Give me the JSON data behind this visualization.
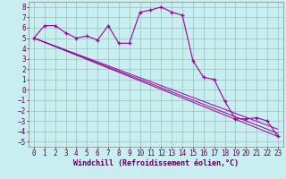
{
  "title": "",
  "xlabel": "Windchill (Refroidissement éolien,°C)",
  "bg_color": "#c8eef0",
  "line_color": "#990099",
  "xlim": [
    -0.5,
    23.5
  ],
  "ylim": [
    -5.5,
    8.5
  ],
  "yticks": [
    -5,
    -4,
    -3,
    -2,
    -1,
    0,
    1,
    2,
    3,
    4,
    5,
    6,
    7,
    8
  ],
  "xticks": [
    0,
    1,
    2,
    3,
    4,
    5,
    6,
    7,
    8,
    9,
    10,
    11,
    12,
    13,
    14,
    15,
    16,
    17,
    18,
    19,
    20,
    21,
    22,
    23
  ],
  "series1_x": [
    0,
    1,
    2,
    3,
    4,
    5,
    6,
    7,
    8,
    9,
    10,
    11,
    12,
    13,
    14,
    15,
    16,
    17,
    18,
    19,
    20,
    21,
    22,
    23
  ],
  "series1_y": [
    5.0,
    6.2,
    6.2,
    5.5,
    5.0,
    5.2,
    4.8,
    6.2,
    4.5,
    4.5,
    7.5,
    7.7,
    8.0,
    7.5,
    7.2,
    2.8,
    1.2,
    1.0,
    -1.1,
    -2.8,
    -2.8,
    -2.7,
    -3.0,
    -4.5
  ],
  "line1_x": [
    0,
    23
  ],
  "line1_y": [
    5.0,
    -4.5
  ],
  "line2_x": [
    0,
    23
  ],
  "line2_y": [
    5.0,
    -4.2
  ],
  "line3_x": [
    0,
    23
  ],
  "line3_y": [
    5.0,
    -3.8
  ],
  "grid_color": "#9bbcbd",
  "fontsize_ticks": 5.5,
  "fontsize_label": 6.0
}
